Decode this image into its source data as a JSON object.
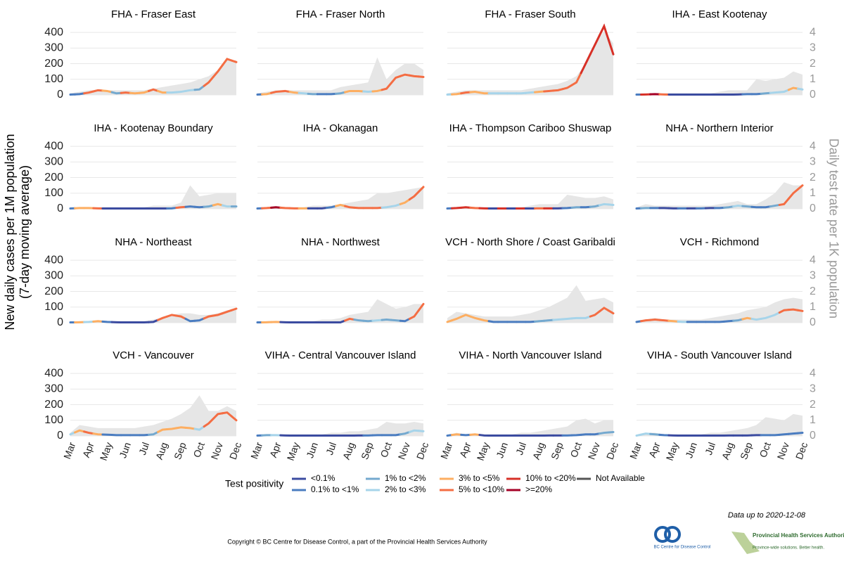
{
  "chart_data": {
    "type": "small-multiples-line",
    "y_title": [
      "New daily cases per 1M population",
      "(7-day moving average)"
    ],
    "y2_title": "Daily test rate per 1K population",
    "categories": [
      "Mar",
      null,
      "Apr",
      null,
      "May",
      null,
      "Jun",
      null,
      "Jul",
      null,
      "Aug",
      null,
      "Sep",
      null,
      "Oct",
      null,
      "Nov",
      null,
      "Dec"
    ],
    "ylim": [
      0,
      450
    ],
    "yticks": [
      0,
      100,
      200,
      300,
      400
    ],
    "y2lim": [
      0,
      4.5
    ],
    "y2ticks": [
      0,
      1,
      2,
      3,
      4
    ],
    "grid": true,
    "area_color": "#e6e6e6",
    "legend": {
      "title": "Test positivity",
      "classes": [
        {
          "name": "<0.1%",
          "color": "#3b4ba0"
        },
        {
          "name": "0.1% to <1%",
          "color": "#4a7cc0"
        },
        {
          "name": "1% to <2%",
          "color": "#74a9cf"
        },
        {
          "name": "2% to <3%",
          "color": "#a6d4ea"
        },
        {
          "name": "3% to <5%",
          "color": "#fdae61"
        },
        {
          "name": "5% to <10%",
          "color": "#f46d43"
        },
        {
          "name": "10% to <20%",
          "color": "#d73027"
        },
        {
          "name": ">=20%",
          "color": "#a50026"
        },
        {
          "name": "Not Available",
          "color": "#555555"
        }
      ]
    },
    "panels": [
      {
        "title": "FHA - Fraser East",
        "values": [
          2,
          5,
          15,
          30,
          25,
          10,
          15,
          10,
          15,
          35,
          15,
          15,
          20,
          30,
          35,
          80,
          150,
          230,
          210
        ],
        "positivity": [
          1,
          1,
          5,
          5,
          4,
          2,
          5,
          4,
          4,
          5,
          4,
          3,
          3,
          3,
          2,
          5,
          5,
          5,
          5
        ],
        "tests": [
          0.1,
          0.2,
          0.3,
          0.3,
          0.3,
          0.3,
          0.3,
          0.3,
          0.3,
          0.4,
          0.5,
          0.6,
          0.7,
          0.8,
          1.0,
          1.2,
          1.6,
          2.3,
          2.2
        ]
      },
      {
        "title": "FHA - Fraser North",
        "values": [
          2,
          5,
          20,
          25,
          15,
          10,
          5,
          5,
          5,
          10,
          25,
          25,
          20,
          25,
          40,
          110,
          130,
          120,
          115
        ],
        "positivity": [
          1,
          4,
          5,
          5,
          4,
          3,
          2,
          1,
          1,
          2,
          4,
          4,
          3,
          4,
          5,
          5,
          5,
          5,
          5
        ],
        "tests": [
          0.1,
          0.2,
          0.3,
          0.3,
          0.3,
          0.3,
          0.3,
          0.3,
          0.3,
          0.5,
          0.6,
          0.7,
          0.8,
          2.4,
          1.0,
          1.6,
          2.0,
          2.0,
          1.6
        ]
      },
      {
        "title": "FHA - Fraser South",
        "values": [
          2,
          5,
          15,
          20,
          10,
          10,
          10,
          10,
          10,
          15,
          20,
          25,
          30,
          45,
          80,
          200,
          320,
          440,
          260
        ],
        "positivity": [
          3,
          4,
          5,
          4,
          4,
          3,
          3,
          3,
          3,
          3,
          4,
          5,
          5,
          5,
          5,
          6,
          6,
          6,
          6
        ],
        "tests": [
          0.1,
          0.2,
          0.3,
          0.3,
          0.3,
          0.3,
          0.3,
          0.3,
          0.3,
          0.4,
          0.5,
          0.6,
          0.7,
          0.9,
          1.2,
          2.0,
          3.2,
          4.1,
          3.3
        ]
      },
      {
        "title": "IHA - East Kootenay",
        "values": [
          2,
          3,
          5,
          3,
          2,
          2,
          2,
          2,
          2,
          2,
          2,
          3,
          5,
          5,
          10,
          15,
          20,
          45,
          35
        ],
        "positivity": [
          1,
          6,
          7,
          5,
          0,
          0,
          0,
          0,
          0,
          0,
          0,
          0,
          1,
          1,
          2,
          3,
          3,
          4,
          3
        ],
        "tests": [
          0,
          0.05,
          0.1,
          0.1,
          0.1,
          0.1,
          0.1,
          0.1,
          0.1,
          0.2,
          0.3,
          0.3,
          0.3,
          1.0,
          0.9,
          1.0,
          1.1,
          1.5,
          1.3
        ]
      },
      {
        "title": "IHA - Kootenay Boundary",
        "values": [
          2,
          5,
          5,
          3,
          2,
          2,
          2,
          2,
          2,
          2,
          2,
          3,
          10,
          15,
          10,
          15,
          30,
          15,
          15
        ],
        "positivity": [
          1,
          4,
          4,
          5,
          0,
          0,
          0,
          0,
          0,
          0,
          0,
          1,
          5,
          1,
          1,
          2,
          4,
          3,
          2
        ],
        "tests": [
          0,
          0.1,
          0.1,
          0.1,
          0.1,
          0.1,
          0.1,
          0.1,
          0.1,
          0.2,
          0.2,
          0.2,
          0.4,
          1.5,
          0.8,
          0.9,
          1.0,
          1.0,
          1.0
        ]
      },
      {
        "title": "IHA - Okanagan",
        "values": [
          2,
          5,
          10,
          5,
          3,
          3,
          3,
          3,
          10,
          25,
          10,
          5,
          5,
          5,
          10,
          20,
          40,
          80,
          140
        ],
        "positivity": [
          1,
          5,
          7,
          5,
          5,
          4,
          0,
          0,
          1,
          4,
          5,
          5,
          5,
          5,
          3,
          3,
          4,
          5,
          5
        ],
        "tests": [
          0,
          0.1,
          0.1,
          0.1,
          0.1,
          0.1,
          0.2,
          0.2,
          0.2,
          0.3,
          0.4,
          0.5,
          0.6,
          1.0,
          1.0,
          1.1,
          1.2,
          1.3,
          1.4
        ]
      },
      {
        "title": "IHA - Thompson Cariboo Shuswap",
        "values": [
          2,
          5,
          10,
          5,
          3,
          2,
          2,
          2,
          2,
          2,
          3,
          3,
          3,
          5,
          10,
          10,
          15,
          30,
          25
        ],
        "positivity": [
          1,
          6,
          6,
          5,
          6,
          0,
          6,
          0,
          6,
          0,
          5,
          6,
          0,
          1,
          2,
          1,
          2,
          3,
          3
        ],
        "tests": [
          0,
          0.1,
          0.1,
          0.1,
          0.1,
          0.1,
          0.1,
          0.1,
          0.1,
          0.2,
          0.3,
          0.3,
          0.3,
          0.9,
          0.8,
          0.7,
          0.7,
          0.8,
          0.6
        ]
      },
      {
        "title": "NHA - Northern Interior",
        "values": [
          2,
          5,
          5,
          5,
          3,
          3,
          3,
          3,
          5,
          5,
          10,
          20,
          15,
          10,
          10,
          20,
          30,
          100,
          150
        ],
        "positivity": [
          1,
          2,
          1,
          0,
          0,
          1,
          0,
          1,
          0,
          1,
          2,
          3,
          2,
          1,
          1,
          2,
          5,
          5,
          5
        ],
        "tests": [
          0.1,
          0.3,
          0.2,
          0.2,
          0.2,
          0.2,
          0.2,
          0.2,
          0.2,
          0.3,
          0.4,
          0.5,
          0.3,
          0.3,
          0.6,
          1.0,
          1.7,
          1.5,
          1.5
        ]
      },
      {
        "title": "NHA - Northeast",
        "values": [
          2,
          3,
          5,
          10,
          5,
          3,
          2,
          2,
          2,
          5,
          30,
          50,
          40,
          10,
          15,
          40,
          50,
          70,
          90
        ],
        "positivity": [
          1,
          4,
          3,
          4,
          1,
          0,
          0,
          0,
          0,
          0,
          5,
          5,
          5,
          1,
          1,
          5,
          5,
          5,
          5
        ],
        "tests": [
          0,
          0.1,
          0.1,
          0.1,
          0.1,
          0.1,
          0.1,
          0.1,
          0.1,
          0.2,
          0.3,
          0.5,
          0.6,
          0.6,
          0.5,
          0.5,
          0.6,
          0.8,
          0.9
        ]
      },
      {
        "title": "NHA - Northwest",
        "values": [
          2,
          3,
          5,
          3,
          2,
          2,
          2,
          2,
          2,
          2,
          25,
          15,
          10,
          15,
          20,
          15,
          10,
          40,
          120
        ],
        "positivity": [
          1,
          4,
          4,
          0,
          0,
          0,
          0,
          0,
          0,
          0,
          5,
          2,
          2,
          3,
          2,
          2,
          1,
          5,
          5
        ],
        "tests": [
          0,
          0.1,
          0.1,
          0.1,
          0.1,
          0.1,
          0.1,
          0.2,
          0.2,
          0.3,
          0.5,
          0.6,
          0.7,
          1.5,
          1.2,
          0.9,
          1.0,
          1.2,
          1.2
        ]
      },
      {
        "title": "VCH - North Shore / Coast Garibaldi",
        "values": [
          5,
          25,
          50,
          30,
          15,
          5,
          5,
          5,
          5,
          5,
          10,
          15,
          20,
          25,
          30,
          30,
          50,
          95,
          60
        ],
        "positivity": [
          4,
          4,
          4,
          4,
          4,
          1,
          1,
          1,
          1,
          1,
          2,
          2,
          3,
          3,
          3,
          3,
          5,
          5,
          5
        ],
        "tests": [
          0.3,
          0.7,
          0.6,
          0.5,
          0.4,
          0.4,
          0.4,
          0.4,
          0.5,
          0.6,
          0.8,
          1.0,
          1.3,
          1.6,
          2.4,
          1.4,
          1.5,
          1.6,
          1.3
        ]
      },
      {
        "title": "VCH - Richmond",
        "values": [
          5,
          15,
          20,
          15,
          10,
          5,
          5,
          5,
          5,
          5,
          10,
          15,
          30,
          20,
          30,
          50,
          80,
          85,
          75
        ],
        "positivity": [
          1,
          5,
          5,
          5,
          4,
          3,
          1,
          1,
          1,
          1,
          1,
          2,
          4,
          3,
          3,
          3,
          5,
          5,
          5
        ],
        "tests": [
          0.1,
          0.2,
          0.3,
          0.2,
          0.2,
          0.2,
          0.2,
          0.2,
          0.3,
          0.4,
          0.5,
          0.6,
          0.8,
          0.9,
          1.0,
          1.3,
          1.5,
          1.6,
          1.5
        ]
      },
      {
        "title": "VCH - Vancouver",
        "values": [
          10,
          35,
          20,
          10,
          8,
          5,
          5,
          5,
          5,
          10,
          40,
          45,
          55,
          50,
          40,
          80,
          140,
          150,
          100
        ],
        "positivity": [
          3,
          4,
          5,
          4,
          1,
          1,
          1,
          1,
          1,
          2,
          4,
          4,
          4,
          4,
          3,
          5,
          5,
          5,
          5
        ],
        "tests": [
          0.2,
          0.7,
          0.6,
          0.5,
          0.5,
          0.5,
          0.5,
          0.5,
          0.6,
          0.7,
          0.9,
          1.1,
          1.4,
          1.8,
          2.6,
          1.6,
          1.6,
          1.9,
          1.6
        ]
      },
      {
        "title": "VIHA - Central Vancouver Island",
        "values": [
          2,
          5,
          5,
          3,
          2,
          2,
          2,
          2,
          2,
          2,
          2,
          3,
          3,
          5,
          5,
          5,
          15,
          35,
          30
        ],
        "positivity": [
          1,
          2,
          3,
          0,
          0,
          0,
          0,
          0,
          0,
          0,
          0,
          0,
          1,
          1,
          1,
          1,
          2,
          3,
          3
        ],
        "tests": [
          0.05,
          0.1,
          0.1,
          0.1,
          0.1,
          0.1,
          0.1,
          0.1,
          0.2,
          0.2,
          0.3,
          0.3,
          0.4,
          0.5,
          0.9,
          0.8,
          0.8,
          0.9,
          0.8
        ]
      },
      {
        "title": "VIHA - North Vancouver Island",
        "values": [
          2,
          10,
          5,
          10,
          3,
          2,
          2,
          2,
          2,
          2,
          2,
          3,
          3,
          3,
          5,
          10,
          10,
          20,
          25
        ],
        "positivity": [
          1,
          4,
          1,
          4,
          0,
          0,
          0,
          0,
          0,
          0,
          0,
          0,
          0,
          1,
          1,
          1,
          1,
          2,
          2
        ],
        "tests": [
          0.05,
          0.2,
          0.1,
          0.1,
          0.1,
          0.1,
          0.1,
          0.1,
          0.2,
          0.2,
          0.3,
          0.4,
          0.5,
          0.6,
          1.0,
          1.1,
          0.8,
          1.0,
          1.0
        ]
      },
      {
        "title": "VIHA - South Vancouver Island",
        "values": [
          2,
          15,
          10,
          5,
          3,
          2,
          2,
          2,
          2,
          2,
          3,
          3,
          3,
          5,
          5,
          5,
          10,
          15,
          20
        ],
        "positivity": [
          3,
          3,
          2,
          1,
          0,
          0,
          0,
          0,
          0,
          0,
          0,
          0,
          0,
          0,
          1,
          1,
          1,
          1,
          1
        ],
        "tests": [
          0.05,
          0.2,
          0.2,
          0.1,
          0.1,
          0.1,
          0.1,
          0.1,
          0.2,
          0.2,
          0.3,
          0.4,
          0.5,
          0.7,
          1.2,
          1.1,
          1.0,
          1.4,
          1.3
        ]
      }
    ]
  },
  "note": "Data up to 2020-12-08",
  "copyright": "Copyright © BC Centre for Disease Control, a part of the Provincial Health Services Authority",
  "logos": {
    "bccdc": "BC Centre for Disease Control",
    "phsa": "Provincial Health Services Authority",
    "phsa_tagline": "Province-wide solutions. Better health."
  }
}
